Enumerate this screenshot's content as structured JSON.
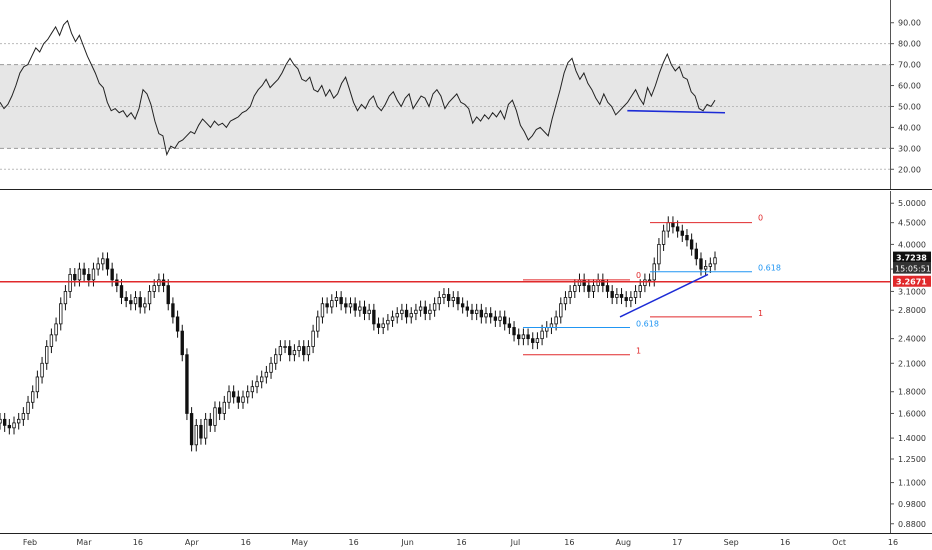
{
  "chart_data": {
    "rsi": {
      "type": "line",
      "band": [
        30,
        70
      ],
      "levels": [
        80,
        20
      ],
      "y_ticks": [
        "90.00",
        "80.00",
        "70.00",
        "60.00",
        "50.00",
        "40.00",
        "30.00",
        "20.00"
      ],
      "ylim": [
        12,
        98
      ],
      "values": [
        52,
        49,
        51,
        55,
        60,
        66,
        69,
        70,
        74,
        78,
        76,
        80,
        82,
        85,
        88,
        84,
        89,
        91,
        85,
        81,
        84,
        79,
        74,
        70,
        66,
        61,
        59,
        52,
        48,
        49,
        47,
        48,
        45,
        47,
        44,
        49,
        58,
        56,
        51,
        43,
        37,
        36,
        27,
        31,
        30,
        33,
        34,
        36,
        38,
        37,
        41,
        44,
        42,
        40,
        43,
        41,
        42,
        40,
        43,
        44,
        45,
        47,
        48,
        50,
        55,
        58,
        60,
        63,
        59,
        61,
        63,
        66,
        70,
        73,
        70,
        68,
        63,
        62,
        64,
        58,
        57,
        60,
        55,
        58,
        54,
        56,
        61,
        64,
        58,
        52,
        48,
        51,
        49,
        53,
        55,
        50,
        48,
        51,
        55,
        57,
        53,
        50,
        54,
        56,
        49,
        52,
        55,
        54,
        50,
        56,
        58,
        55,
        49,
        52,
        54,
        56,
        52,
        51,
        49,
        42,
        45,
        43,
        46,
        44,
        47,
        45,
        48,
        44,
        51,
        53,
        48,
        41,
        38,
        34,
        36,
        39,
        40,
        38,
        36,
        44,
        51,
        58,
        66,
        71,
        73,
        67,
        63,
        66,
        61,
        58,
        54,
        51,
        56,
        52,
        50,
        46,
        48,
        50,
        52,
        55,
        58,
        54,
        51,
        59,
        55,
        60,
        66,
        71,
        75,
        70,
        67,
        69,
        64,
        63,
        57,
        55,
        49,
        48,
        51,
        50,
        53
      ],
      "trendline": {
        "from_index": 168,
        "to_index": 180,
        "from_value": 48,
        "to_value": 47,
        "color": "#1c2bd6"
      }
    },
    "price": {
      "type": "candlestick",
      "ylim": [
        0.86,
        5.2
      ],
      "y_ticks": [
        "5.0000",
        "4.5000",
        "4.0000",
        "3.5000",
        "3.1000",
        "2.8000",
        "2.4000",
        "2.1000",
        "1.8000",
        "1.6000",
        "1.4000",
        "1.2500",
        "1.1000",
        "0.9800",
        "0.8800"
      ],
      "x_labels": [
        "Feb",
        "Mar",
        "16",
        "Apr",
        "16",
        "May",
        "16",
        "Jun",
        "16",
        "Jul",
        "16",
        "Aug",
        "17",
        "Sep",
        "16",
        "Oct",
        "16"
      ],
      "closes": [
        1.55,
        1.5,
        1.48,
        1.52,
        1.55,
        1.6,
        1.7,
        1.8,
        1.95,
        2.1,
        2.3,
        2.45,
        2.6,
        2.9,
        3.1,
        3.4,
        3.3,
        3.5,
        3.4,
        3.3,
        3.5,
        3.6,
        3.7,
        3.5,
        3.3,
        3.2,
        3.0,
        2.95,
        2.9,
        3.0,
        2.85,
        2.9,
        3.1,
        3.2,
        3.3,
        3.2,
        2.9,
        2.7,
        2.5,
        2.2,
        1.6,
        1.35,
        1.5,
        1.4,
        1.55,
        1.5,
        1.65,
        1.6,
        1.7,
        1.8,
        1.75,
        1.7,
        1.75,
        1.8,
        1.85,
        1.9,
        1.95,
        2.0,
        2.1,
        2.2,
        2.3,
        2.3,
        2.2,
        2.25,
        2.3,
        2.2,
        2.3,
        2.5,
        2.7,
        2.9,
        2.85,
        2.95,
        3.0,
        2.9,
        2.85,
        2.9,
        2.8,
        2.85,
        2.75,
        2.8,
        2.6,
        2.55,
        2.6,
        2.65,
        2.7,
        2.75,
        2.8,
        2.7,
        2.75,
        2.8,
        2.85,
        2.75,
        2.8,
        2.9,
        3.0,
        3.05,
        2.95,
        3.0,
        2.9,
        2.85,
        2.8,
        2.75,
        2.8,
        2.7,
        2.75,
        2.7,
        2.65,
        2.7,
        2.6,
        2.55,
        2.45,
        2.4,
        2.45,
        2.4,
        2.35,
        2.4,
        2.5,
        2.55,
        2.6,
        2.7,
        2.9,
        3.0,
        3.1,
        3.2,
        3.3,
        3.2,
        3.1,
        3.2,
        3.3,
        3.2,
        3.1,
        3.0,
        3.05,
        3.0,
        2.95,
        3.0,
        3.1,
        3.2,
        3.3,
        3.3,
        3.6,
        4.0,
        4.3,
        4.5,
        4.4,
        4.3,
        4.2,
        4.1,
        3.9,
        3.7,
        3.5,
        3.55,
        3.6,
        3.72
      ],
      "last_price": {
        "label": "3.7238",
        "value": 3.7238
      },
      "countdown": "15:05:51",
      "horizontal_level": {
        "label": "3.2671",
        "value": 3.2671,
        "color": "#e0292b"
      },
      "fib_lower": {
        "zero_label": "0",
        "mid_label": "0.618",
        "one_label": "1",
        "zero_value": 3.3,
        "mid_value": 2.55,
        "one_value": 2.2
      },
      "fib_upper": {
        "zero_label": "0",
        "mid_label": "0.618",
        "one_label": "1",
        "zero_value": 4.5,
        "mid_value": 3.45,
        "one_value": 2.7
      },
      "trendline": {
        "from_value": 2.7,
        "to_value": 3.4,
        "color": "#1c2bd6"
      }
    }
  },
  "colors": {
    "rsi_band": "#e6e6e6",
    "line": "#222222",
    "red": "#e0292b",
    "blue": "#1c2bd6",
    "fib_mid": "#2196f3"
  }
}
